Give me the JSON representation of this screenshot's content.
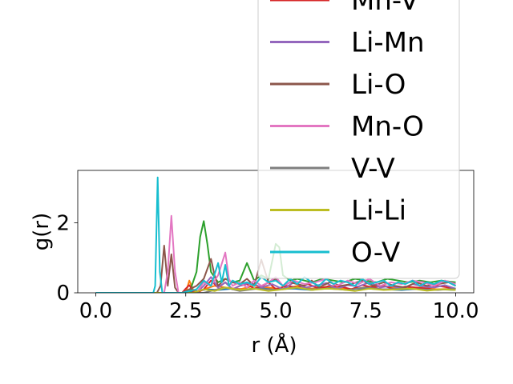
{
  "chart_data": {
    "type": "line",
    "xlabel": "r (Å)",
    "ylabel": "g(r)",
    "xlim": [
      -0.5,
      10.5
    ],
    "ylim": [
      0,
      3.5
    ],
    "xticks": [
      "0.0",
      "2.5",
      "5.0",
      "7.5",
      "10.0"
    ],
    "xtick_values": [
      0,
      2.5,
      5,
      7.5,
      10
    ],
    "yticks": [
      "0",
      "2"
    ],
    "ytick_values": [
      0,
      2
    ],
    "grid": false,
    "legend": {
      "placement": "top-right, overflowing above the axes",
      "alpha": 0.8
    },
    "series": [
      {
        "name": "Mn-V",
        "color": "#d62728",
        "x": [
          0,
          2.4,
          2.5,
          2.6,
          2.7,
          2.8,
          3.0,
          3.2,
          3.4,
          3.6,
          3.8,
          4.0,
          4.2,
          4.4,
          4.6,
          4.8,
          5.0,
          5.3,
          5.6,
          5.9,
          6.2,
          6.5,
          6.8,
          7.1,
          7.4,
          7.7,
          8.0,
          8.3,
          8.6,
          8.9,
          9.2,
          9.5,
          9.8,
          10.0
        ],
        "y": [
          0,
          0,
          0.12,
          0.22,
          0.05,
          0,
          0.1,
          0.35,
          0.15,
          0.3,
          0.1,
          0.2,
          0.25,
          0.12,
          0.18,
          0.3,
          0.1,
          0.2,
          0.15,
          0.25,
          0.12,
          0.2,
          0.18,
          0.1,
          0.22,
          0.15,
          0.2,
          0.1,
          0.18,
          0.15,
          0.12,
          0.2,
          0.15,
          0.1
        ]
      },
      {
        "name": "Li-Mn",
        "color": "#9467bd",
        "x": [
          0,
          2.8,
          3.0,
          3.2,
          3.4,
          3.6,
          3.8,
          4.0,
          4.3,
          4.6,
          4.9,
          5.2,
          5.5,
          5.8,
          6.1,
          6.4,
          6.7,
          7.0,
          7.3,
          7.6,
          7.9,
          8.2,
          8.5,
          8.8,
          9.1,
          9.4,
          9.7,
          10.0
        ],
        "y": [
          0,
          0,
          0.2,
          0.45,
          0.15,
          0.3,
          0.1,
          0.2,
          0.3,
          0.15,
          0.25,
          0.1,
          0.3,
          0.15,
          0.2,
          0.28,
          0.12,
          0.22,
          0.18,
          0.3,
          0.15,
          0.2,
          0.12,
          0.25,
          0.18,
          0.15,
          0.22,
          0.12
        ]
      },
      {
        "name": "Li-O",
        "color": "#8c564b",
        "x": [
          0,
          1.7,
          1.8,
          1.9,
          2.0,
          2.1,
          2.2,
          2.3,
          2.4,
          2.6,
          2.8,
          3.0,
          3.2,
          3.3,
          3.4,
          3.6,
          3.8,
          4.0,
          4.2,
          4.4,
          4.6,
          4.8,
          5.0,
          5.2,
          5.4,
          5.6,
          5.8,
          6.0,
          6.2,
          6.5,
          6.8,
          7.1,
          7.4,
          7.7,
          8.0,
          8.3,
          8.6,
          8.9,
          9.2,
          9.5,
          9.8,
          10.0
        ],
        "y": [
          0,
          0,
          0.2,
          1.35,
          0.2,
          1.1,
          0.15,
          0,
          0,
          0.1,
          0.2,
          0.4,
          0.97,
          0.5,
          0.2,
          0.4,
          0.3,
          0.25,
          0.4,
          0.2,
          0.95,
          0.3,
          0.4,
          0.2,
          0.3,
          0.25,
          0.2,
          0.35,
          0.15,
          0.3,
          0.2,
          0.25,
          0.35,
          0.2,
          0.3,
          0.2,
          0.15,
          0.3,
          0.2,
          0.25,
          0.3,
          0.2
        ]
      },
      {
        "name": "Mn-O",
        "color": "#e377c2",
        "x": [
          0,
          1.9,
          2.0,
          2.1,
          2.2,
          2.3,
          2.8,
          3.0,
          3.2,
          3.4,
          3.6,
          3.7,
          3.8,
          4.0,
          4.2,
          4.4,
          4.6,
          4.8,
          5.0,
          5.2,
          5.5,
          5.8,
          6.1,
          6.4,
          6.7,
          7.0,
          7.3,
          7.6,
          7.9,
          8.2,
          8.5,
          8.8,
          9.1,
          9.4,
          9.7,
          10.0
        ],
        "y": [
          0,
          0,
          0.6,
          2.2,
          0.6,
          0,
          0,
          0.3,
          0.2,
          0.5,
          1.15,
          0.4,
          0.2,
          0.3,
          0.15,
          0.35,
          0.2,
          0.3,
          0.45,
          0.2,
          0.35,
          0.25,
          0.3,
          0.4,
          0.2,
          0.35,
          0.25,
          0.4,
          0.2,
          0.3,
          0.25,
          0.35,
          0.3,
          0.2,
          0.35,
          0.25
        ]
      },
      {
        "name": "V-V",
        "color": "#7f7f7f",
        "x": [
          0,
          3.0,
          3.3,
          3.6,
          4.0,
          4.5,
          5.0,
          5.5,
          6.0,
          6.5,
          7.0,
          7.5,
          8.0,
          8.5,
          9.0,
          9.5,
          10.0
        ],
        "y": [
          0,
          0,
          0.08,
          0.15,
          0.05,
          0.12,
          0.08,
          0.15,
          0.1,
          0.12,
          0.08,
          0.15,
          0.1,
          0.12,
          0.1,
          0.08,
          0.12
        ]
      },
      {
        "name": "Li-Li",
        "color": "#bcbd22",
        "x": [
          0,
          2.7,
          3.0,
          3.3,
          3.6,
          4.0,
          4.4,
          4.8,
          5.2,
          5.6,
          6.0,
          6.4,
          6.8,
          7.2,
          7.6,
          8.0,
          8.4,
          8.8,
          9.2,
          9.6,
          10.0
        ],
        "y": [
          0,
          0,
          0.1,
          0.05,
          0.15,
          0.08,
          0.12,
          0.05,
          0.1,
          0.15,
          0.08,
          0.12,
          0.1,
          0.05,
          0.12,
          0.08,
          0.1,
          0.12,
          0.06,
          0.1,
          0.08
        ]
      },
      {
        "name": "O-V",
        "color": "#17becf",
        "x": [
          0,
          1.6,
          1.65,
          1.72,
          1.78,
          1.85,
          1.9,
          2.4,
          2.6,
          2.8,
          3.0,
          3.2,
          3.4,
          3.5,
          3.6,
          3.7,
          3.8,
          4.0,
          4.2,
          4.4,
          4.6,
          4.8,
          5.0,
          5.2,
          5.4,
          5.6,
          5.8,
          6.0,
          6.2,
          6.4,
          6.6,
          6.8,
          7.0,
          7.2,
          7.4,
          7.6,
          7.8,
          8.0,
          8.2,
          8.4,
          8.6,
          8.8,
          9.0,
          9.2,
          9.4,
          9.6,
          9.8,
          10.0
        ],
        "y": [
          0,
          0,
          0.2,
          3.3,
          0.6,
          0,
          0,
          0,
          0.05,
          0.1,
          0.35,
          0.2,
          0.85,
          0.3,
          0.8,
          0.2,
          0.35,
          0.25,
          0.3,
          0.2,
          0.45,
          0.3,
          0.35,
          0.2,
          0.4,
          0.25,
          0.45,
          0.3,
          0.2,
          0.4,
          0.25,
          0.35,
          0.3,
          0.2,
          0.4,
          0.25,
          0.3,
          0.35,
          0.2,
          0.3,
          0.25,
          0.35,
          0.2,
          0.3,
          0.25,
          0.35,
          0.3,
          0.2
        ]
      }
    ],
    "background_series": [
      {
        "color": "#1f77b4",
        "x": [
          0,
          2.5,
          2.8,
          3.1,
          3.4,
          3.8,
          4.2,
          4.6,
          5.0,
          5.5,
          6.0,
          6.5,
          7.0,
          7.5,
          8.0,
          8.5,
          9.0,
          9.5,
          10.0
        ],
        "y": [
          0,
          0,
          0.05,
          0.1,
          0.08,
          0.12,
          0.1,
          0.15,
          0.1,
          0.12,
          0.08,
          0.15,
          0.1,
          0.12,
          0.1,
          0.08,
          0.12,
          0.1,
          0.08
        ]
      },
      {
        "color": "#ff7f0e",
        "x": [
          0,
          2.5,
          2.6,
          2.7,
          2.8,
          3.0,
          3.3,
          3.6,
          4.0,
          4.4,
          4.8,
          5.2,
          5.6,
          6.0,
          6.5,
          7.0,
          7.5,
          8.0,
          8.5,
          9.0,
          9.5,
          10.0
        ],
        "y": [
          0,
          0,
          0.35,
          0.1,
          0,
          0.1,
          0.2,
          0.15,
          0.1,
          0.2,
          0.15,
          0.1,
          0.2,
          0.12,
          0.18,
          0.1,
          0.15,
          0.2,
          0.12,
          0.15,
          0.1,
          0.12
        ]
      },
      {
        "color": "#2ca02c",
        "x": [
          0,
          2.6,
          2.8,
          2.9,
          3.0,
          3.1,
          3.2,
          3.4,
          3.6,
          3.8,
          4.0,
          4.2,
          4.3,
          4.4,
          4.6,
          4.8,
          5.0,
          5.1,
          5.2,
          5.4,
          5.6,
          5.8,
          6.0,
          6.3,
          6.6,
          6.9,
          7.2,
          7.5,
          7.8,
          8.1,
          8.4,
          8.7,
          9.0,
          9.3,
          9.6,
          10.0
        ],
        "y": [
          0,
          0,
          0.6,
          1.6,
          2.05,
          1.4,
          0.6,
          0.3,
          0.4,
          0.3,
          0.35,
          0.85,
          0.6,
          0.35,
          0.5,
          0.4,
          1.4,
          1.3,
          0.5,
          0.35,
          0.4,
          0.35,
          0.3,
          0.4,
          0.35,
          0.3,
          0.4,
          0.35,
          0.3,
          0.4,
          0.35,
          0.3,
          0.35,
          0.3,
          0.35,
          0.3
        ]
      }
    ]
  }
}
